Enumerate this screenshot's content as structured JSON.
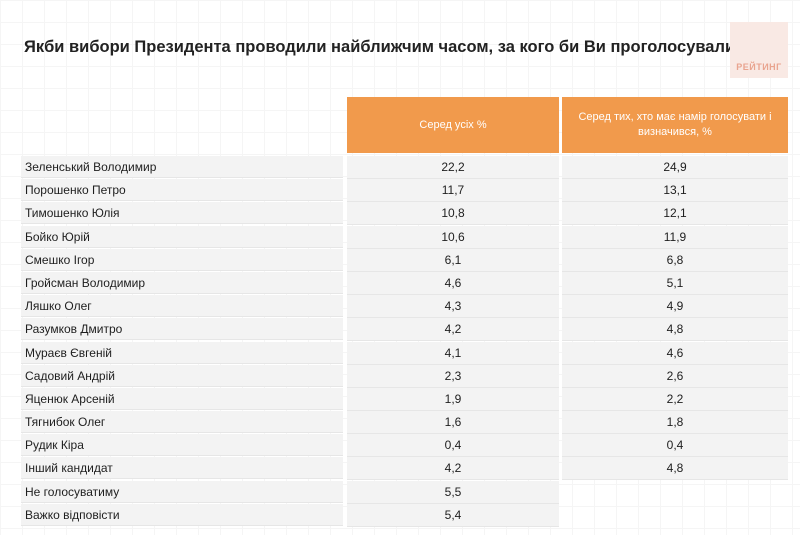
{
  "title": "Якби вибори Президента проводили найближчим часом, за кого би Ви проголосували?",
  "logo_text": "РЕЙТИНГ",
  "colors": {
    "header_bg": "#f19a4c",
    "row_bg": "#f3f3f3",
    "logo_bg": "#f9e9e4"
  },
  "table": {
    "columns": [
      "Серед усіх %",
      "Серед тих, хто має намір голосувати і визначився, %"
    ],
    "rows": [
      {
        "name": "Зеленський Володимир",
        "all": "22,2",
        "voters": "24,9"
      },
      {
        "name": "Порошенко Петро",
        "all": "11,7",
        "voters": "13,1"
      },
      {
        "name": "Тимошенко Юлія",
        "all": "10,8",
        "voters": "12,1"
      },
      {
        "name": "Бойко Юрій",
        "all": "10,6",
        "voters": "11,9"
      },
      {
        "name": "Смешко Ігор",
        "all": "6,1",
        "voters": "6,8"
      },
      {
        "name": "Гройсман Володимир",
        "all": "4,6",
        "voters": "5,1"
      },
      {
        "name": "Ляшко Олег",
        "all": "4,3",
        "voters": "4,9"
      },
      {
        "name": "Разумков Дмитро",
        "all": "4,2",
        "voters": "4,8"
      },
      {
        "name": "Мураєв Євгеній",
        "all": "4,1",
        "voters": "4,6"
      },
      {
        "name": "Садовий Андрій",
        "all": "2,3",
        "voters": "2,6"
      },
      {
        "name": "Яценюк Арсеній",
        "all": "1,9",
        "voters": "2,2"
      },
      {
        "name": "Тягнибок Олег",
        "all": "1,6",
        "voters": "1,8"
      },
      {
        "name": "Рудик Кіра",
        "all": "0,4",
        "voters": "0,4"
      },
      {
        "name": "Інший кандидат",
        "all": "4,2",
        "voters": "4,8"
      },
      {
        "name": "Не голосуватиму",
        "all": "5,5",
        "voters": ""
      },
      {
        "name": "Важко відповісти",
        "all": "5,4",
        "voters": ""
      }
    ]
  }
}
